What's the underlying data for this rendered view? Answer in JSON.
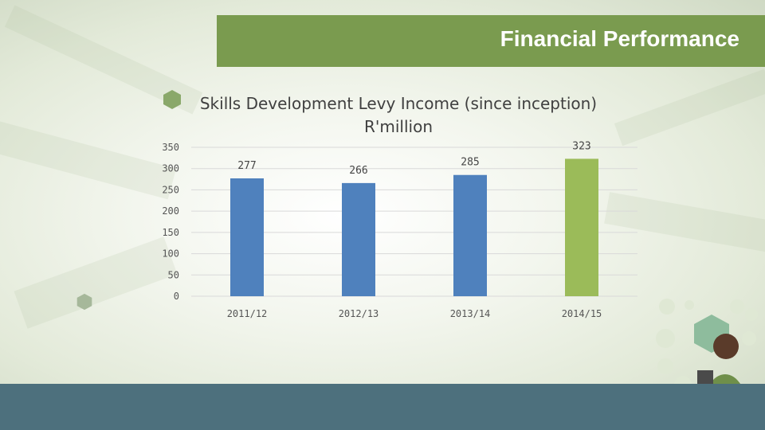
{
  "header": {
    "title": "Financial Performance"
  },
  "chart_data": {
    "type": "bar",
    "title": "Skills Development Levy Income (since inception) R'million",
    "title_lines": [
      "Skills Development Levy Income (since inception)",
      "R'million"
    ],
    "categories": [
      "2011/12",
      "2012/13",
      "2013/14",
      "2014/15"
    ],
    "values": [
      277,
      266,
      285,
      323
    ],
    "data_labels": [
      "277",
      "266",
      "285",
      "323"
    ],
    "bar_colors": [
      "#4f81bd",
      "#4f81bd",
      "#4f81bd",
      "#9bbb59"
    ],
    "ylim": [
      0,
      350
    ],
    "yticks": [
      "0",
      "50",
      "100",
      "150",
      "200",
      "250",
      "300",
      "350"
    ],
    "ytick_values": [
      0,
      50,
      100,
      150,
      200,
      250,
      300,
      350
    ],
    "gridlines": true,
    "legend": "none",
    "xlabel": "",
    "ylabel": ""
  },
  "colors": {
    "header_bg": "#7a9b4f",
    "footer_bg": "#4d707d",
    "bar_blue": "#4f81bd",
    "bar_green": "#9bbb59"
  }
}
